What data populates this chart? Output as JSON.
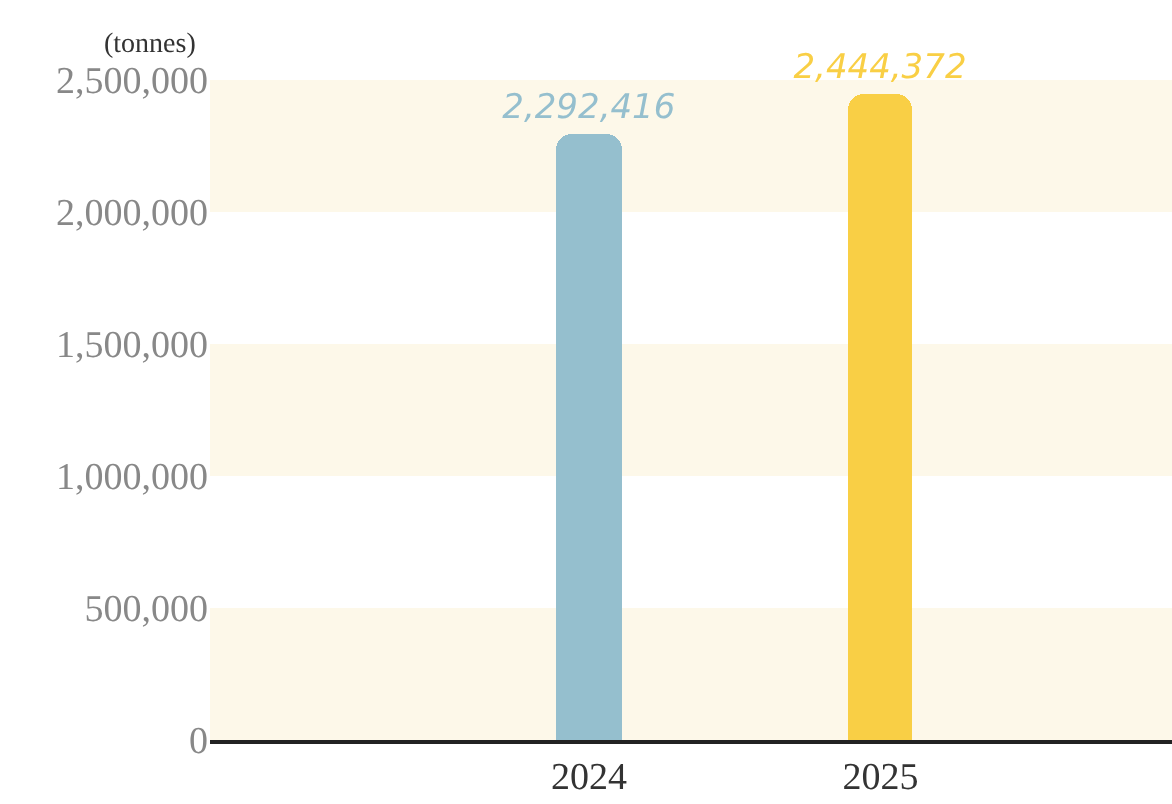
{
  "chart_data": {
    "type": "bar",
    "ylabel": "(tonnes)",
    "categories": [
      "2024",
      "2025"
    ],
    "values": [
      2292416,
      2444372
    ],
    "colors": [
      "#95bfce",
      "#f9cf45"
    ],
    "value_labels": [
      "2,292,416",
      "2,444,372"
    ],
    "ylim": [
      0,
      2500000
    ],
    "yticks": [
      0,
      {
        "value": 500000,
        "label": "500,000"
      },
      {
        "value": 1000000,
        "label": "1,000,000"
      },
      {
        "value": 1500000,
        "label": "1,500,000"
      },
      {
        "value": 2000000,
        "label": "2,000,000"
      },
      {
        "value": 2500000,
        "label": "2,500,000"
      }
    ],
    "bands": [
      {
        "axis": "y",
        "from": 0,
        "to": 500000,
        "color": "#fdf8e9"
      },
      {
        "axis": "y",
        "from": 1000000,
        "to": 1500000,
        "color": "#fdf8e9"
      },
      {
        "axis": "y",
        "from": 2000000,
        "to": 2500000,
        "color": "#fdf8e9"
      }
    ],
    "grid": false,
    "legend": false
  }
}
